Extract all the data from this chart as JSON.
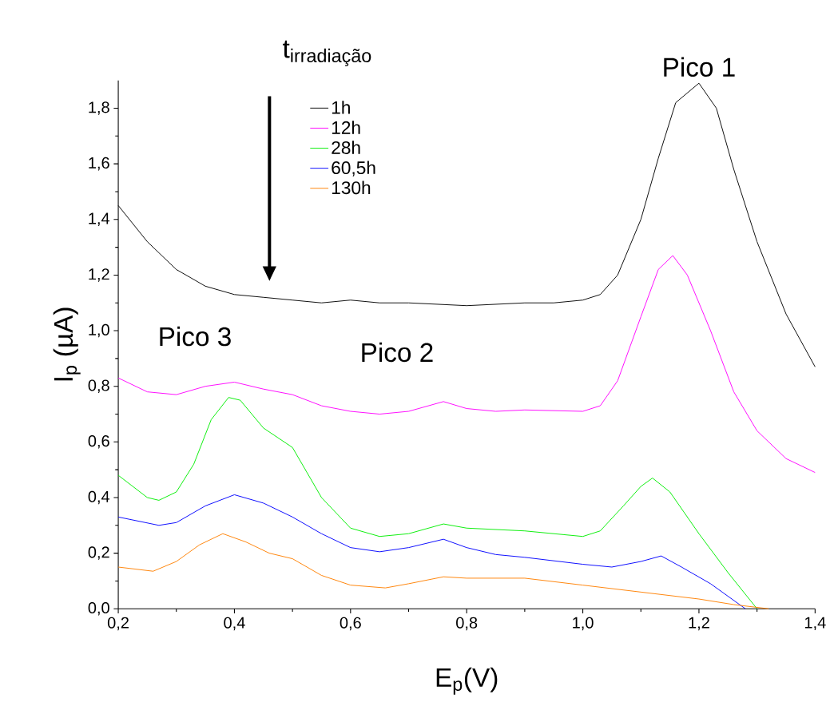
{
  "chart_data": {
    "type": "line",
    "xlabel": "E$_{p}$(V)",
    "ylabel": "I$_{p}$ (µA)",
    "xlim": [
      0.2,
      1.4
    ],
    "ylim": [
      0,
      1.9
    ],
    "xticks": [
      {
        "value": 0.2,
        "label": "0,2"
      },
      {
        "value": 0.4,
        "label": "0,4"
      },
      {
        "value": 0.6,
        "label": "0,6"
      },
      {
        "value": 0.8,
        "label": "0,8"
      },
      {
        "value": 1.0,
        "label": "1,0"
      },
      {
        "value": 1.2,
        "label": "1,2"
      },
      {
        "value": 1.4,
        "label": "1,4"
      }
    ],
    "yticks": [
      {
        "value": 0.0,
        "label": "0,0"
      },
      {
        "value": 0.2,
        "label": "0,2"
      },
      {
        "value": 0.4,
        "label": "0,4"
      },
      {
        "value": 0.6,
        "label": "0,6"
      },
      {
        "value": 0.8,
        "label": "0,8"
      },
      {
        "value": 1.0,
        "label": "1,0"
      },
      {
        "value": 1.2,
        "label": "1,2"
      },
      {
        "value": 1.4,
        "label": "1,4"
      },
      {
        "value": 1.6,
        "label": "1,6"
      },
      {
        "value": 1.8,
        "label": "1,8"
      }
    ],
    "legend": "top left",
    "grid": false,
    "marker": "none",
    "line_style": "solid",
    "annotations": [
      "\\mathrm{t}_{\\text{irradiação}}",
      {
        "text": "Pico 1",
        "x": 1.2,
        "y": 1.9
      },
      "Pico 2",
      "Pico 3"
    ],
    "series": [
      {
        "name": "1h",
        "color": "#000000",
        "x": [
          0.2,
          0.25,
          0.3,
          0.35,
          0.4,
          0.45,
          0.5,
          0.55,
          0.6,
          0.65,
          0.7,
          0.8,
          0.9,
          0.95,
          1.0,
          1.03,
          1.06,
          1.1,
          1.13,
          1.16,
          1.2,
          1.23,
          1.26,
          1.3,
          1.35,
          1.4
        ],
        "values": [
          1.45,
          1.32,
          1.22,
          1.16,
          1.13,
          1.12,
          1.11,
          1.1,
          1.11,
          1.1,
          1.1,
          1.09,
          1.1,
          1.1,
          1.11,
          1.13,
          1.2,
          1.4,
          1.62,
          1.82,
          1.89,
          1.8,
          1.58,
          1.32,
          1.06,
          0.87
        ]
      },
      {
        "name": "12h",
        "color": "#ff00ff",
        "x": [
          0.2,
          0.25,
          0.3,
          0.35,
          0.4,
          0.45,
          0.5,
          0.55,
          0.6,
          0.65,
          0.7,
          0.76,
          0.8,
          0.85,
          0.9,
          1.0,
          1.03,
          1.06,
          1.1,
          1.13,
          1.155,
          1.18,
          1.22,
          1.26,
          1.3,
          1.35,
          1.4
        ],
        "values": [
          0.83,
          0.78,
          0.77,
          0.8,
          0.815,
          0.79,
          0.77,
          0.73,
          0.71,
          0.7,
          0.71,
          0.745,
          0.72,
          0.71,
          0.715,
          0.71,
          0.73,
          0.82,
          1.05,
          1.22,
          1.27,
          1.2,
          1.0,
          0.78,
          0.64,
          0.54,
          0.49
        ]
      },
      {
        "name": "28h",
        "color": "#00ee00",
        "x": [
          0.2,
          0.25,
          0.27,
          0.3,
          0.33,
          0.36,
          0.39,
          0.41,
          0.45,
          0.5,
          0.55,
          0.6,
          0.65,
          0.7,
          0.76,
          0.8,
          0.9,
          1.0,
          1.03,
          1.07,
          1.1,
          1.12,
          1.15,
          1.2,
          1.25,
          1.3
        ],
        "values": [
          0.48,
          0.4,
          0.39,
          0.42,
          0.52,
          0.68,
          0.76,
          0.75,
          0.65,
          0.58,
          0.4,
          0.29,
          0.26,
          0.27,
          0.305,
          0.29,
          0.28,
          0.26,
          0.28,
          0.37,
          0.44,
          0.47,
          0.42,
          0.27,
          0.13,
          0.0
        ]
      },
      {
        "name": "60,5h",
        "color": "#0000ff",
        "x": [
          0.2,
          0.27,
          0.3,
          0.35,
          0.4,
          0.45,
          0.5,
          0.55,
          0.6,
          0.65,
          0.7,
          0.76,
          0.8,
          0.85,
          0.9,
          1.0,
          1.05,
          1.1,
          1.135,
          1.17,
          1.22,
          1.28
        ],
        "values": [
          0.33,
          0.3,
          0.31,
          0.37,
          0.41,
          0.38,
          0.33,
          0.27,
          0.22,
          0.205,
          0.22,
          0.25,
          0.22,
          0.195,
          0.185,
          0.16,
          0.15,
          0.17,
          0.19,
          0.15,
          0.09,
          0.0
        ]
      },
      {
        "name": "130h",
        "color": "#ff8000",
        "x": [
          0.2,
          0.26,
          0.3,
          0.34,
          0.38,
          0.42,
          0.46,
          0.5,
          0.55,
          0.6,
          0.66,
          0.7,
          0.76,
          0.8,
          0.9,
          1.0,
          1.1,
          1.2,
          1.26,
          1.32
        ],
        "values": [
          0.15,
          0.135,
          0.17,
          0.23,
          0.27,
          0.24,
          0.2,
          0.18,
          0.12,
          0.085,
          0.075,
          0.09,
          0.115,
          0.11,
          0.11,
          0.085,
          0.06,
          0.035,
          0.015,
          0.0
        ]
      }
    ]
  }
}
